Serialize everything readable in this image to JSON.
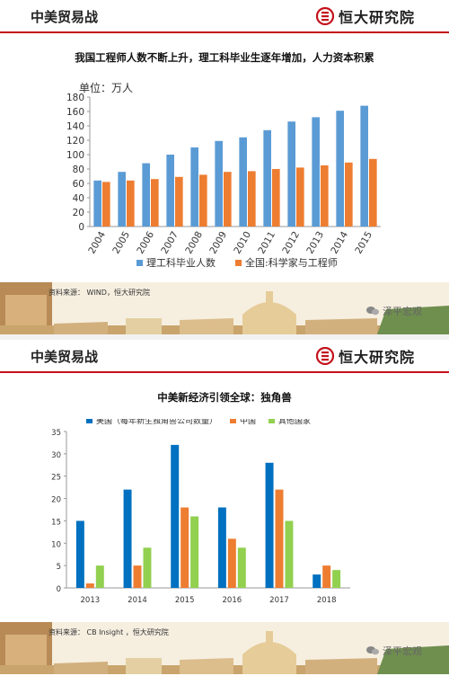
{
  "slides": [
    {
      "header": "中美贸易战",
      "logo": "恒大研究院",
      "title": "我国工程师人数不断上升，理工科毕业生逐年增加，人力资本积累",
      "unit": "单位：万人",
      "source": "资料来源：   WIND，恒大研究院",
      "watermark": "泽平宏观"
    },
    {
      "header": "中美贸易战",
      "logo": "恒大研究院",
      "title": "中美新经济引领全球：独角兽",
      "source": "资料来源：   CB Insight ，恒大研究院",
      "watermark": "泽平宏观"
    }
  ],
  "chart_data": [
    {
      "type": "bar",
      "title": "我国工程师人数不断上升，理工科毕业生逐年增加，人力资本积累",
      "ylabel": "单位：万人",
      "ylim": [
        0,
        180
      ],
      "yticks": [
        0,
        20,
        40,
        60,
        80,
        100,
        120,
        140,
        160,
        180
      ],
      "categories": [
        "2004",
        "2005",
        "2006",
        "2007",
        "2008",
        "2009",
        "2010",
        "2011",
        "2012",
        "2013",
        "2014",
        "2015"
      ],
      "series": [
        {
          "name": "理工科毕业人数",
          "color": "#5b9bd5",
          "values": [
            64,
            76,
            88,
            100,
            110,
            119,
            124,
            134,
            146,
            152,
            161,
            168
          ]
        },
        {
          "name": "全国:科学家与工程师",
          "color": "#ed7d31",
          "values": [
            62,
            64,
            66,
            69,
            72,
            76,
            77,
            80,
            82,
            85,
            89,
            94
          ]
        }
      ],
      "legend": "bottom",
      "grid": false
    },
    {
      "type": "bar",
      "title": "中美新经济引领全球：独角兽",
      "ylim": [
        0,
        35
      ],
      "yticks": [
        0,
        5,
        10,
        15,
        20,
        25,
        30,
        35
      ],
      "categories": [
        "2013",
        "2014",
        "2015",
        "2016",
        "2017",
        "2018"
      ],
      "series": [
        {
          "name": "美国（每年新生独角兽公司数量）",
          "color": "#0070c0",
          "values": [
            15,
            22,
            32,
            18,
            28,
            3
          ]
        },
        {
          "name": "中国",
          "color": "#ed7d31",
          "values": [
            1,
            5,
            18,
            11,
            22,
            5
          ]
        },
        {
          "name": "其他国家",
          "color": "#92d050",
          "values": [
            5,
            9,
            16,
            9,
            15,
            4
          ]
        }
      ],
      "legend": "top",
      "grid": false
    }
  ]
}
